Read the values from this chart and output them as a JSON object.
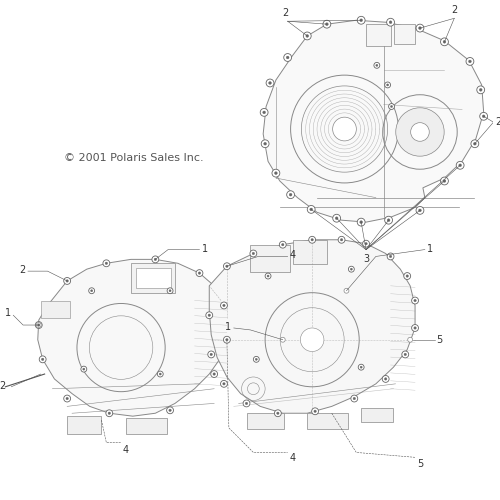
{
  "background_color": "#ffffff",
  "line_color": "#888888",
  "dark_line": "#555555",
  "text_color": "#333333",
  "copyright_text": "© 2001 Polaris Sales Inc.",
  "fig_width": 5.0,
  "fig_height": 5.0,
  "dpi": 100
}
